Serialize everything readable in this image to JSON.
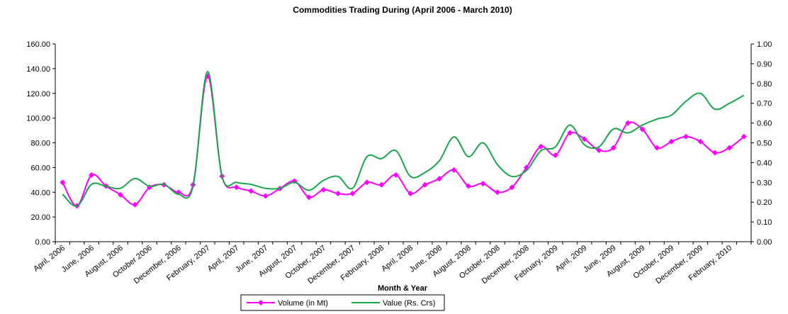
{
  "chart_data": {
    "type": "line",
    "title": "Commodities Trading During (April 2006 - March 2010)",
    "x_label": "Month & Year",
    "categories": [
      "April, 2006",
      null,
      "June, 2006",
      null,
      "August, 2006",
      null,
      "October 2006",
      null,
      "December, 2006",
      null,
      "February, 2007",
      null,
      "April, 2007",
      null,
      "June, 2007",
      null,
      "August, 2007",
      null,
      "October, 2007",
      null,
      "December, 2007",
      null,
      "February, 2008",
      null,
      "April, 2008",
      null,
      "June, 2008",
      null,
      "August, 2008",
      null,
      "October, 2008",
      null,
      "December, 2008",
      null,
      "February, 2009",
      null,
      "April, 2009",
      null,
      "June, 2009",
      null,
      "August, 2009",
      null,
      "October, 2009",
      null,
      "December, 2009",
      null,
      "February, 2010",
      null
    ],
    "series": [
      {
        "name": "Volume (in Mt)",
        "color": "#ff00ff",
        "marker": "diamond",
        "values": [
          48,
          29,
          54,
          45,
          38,
          30,
          44,
          46,
          40,
          46,
          134,
          53,
          44,
          41,
          37,
          43,
          49,
          36,
          42,
          39,
          39,
          48,
          46,
          54,
          39,
          46,
          51,
          58,
          45,
          47,
          40,
          44,
          60,
          77,
          70,
          88,
          83,
          74,
          76,
          96,
          91,
          76,
          81,
          85,
          81,
          72,
          76,
          85
        ]
      },
      {
        "name": "Value (Rs. Crs)",
        "color": "#1aa64a",
        "axis": "y2",
        "values": [
          0.24,
          0.18,
          0.29,
          0.28,
          0.27,
          0.32,
          0.28,
          0.29,
          0.24,
          0.28,
          0.86,
          0.33,
          0.3,
          0.29,
          0.27,
          0.27,
          0.3,
          0.26,
          0.31,
          0.33,
          0.27,
          0.43,
          0.42,
          0.46,
          0.33,
          0.35,
          0.41,
          0.53,
          0.43,
          0.5,
          0.39,
          0.33,
          0.36,
          0.46,
          0.48,
          0.59,
          0.49,
          0.48,
          0.57,
          0.55,
          0.59,
          0.62,
          0.64,
          0.71,
          0.75,
          0.67,
          0.7,
          0.74
        ]
      }
    ],
    "ylim": [
      0,
      160
    ],
    "yticks": [
      {
        "value": 0,
        "label": "0.00"
      },
      {
        "value": 20,
        "label": "20.00"
      },
      {
        "value": 40,
        "label": "40.00"
      },
      {
        "value": 60,
        "label": "60.00"
      },
      {
        "value": 80,
        "label": "80.00"
      },
      {
        "value": 100,
        "label": "100.00"
      },
      {
        "value": 120,
        "label": "120.00"
      },
      {
        "value": 140,
        "label": "140.00"
      },
      {
        "value": 160,
        "label": "160.00"
      }
    ],
    "y2lim": [
      0,
      1
    ],
    "y2ticks": [
      {
        "value": 0,
        "label": "0.00"
      },
      {
        "value": 0.1,
        "label": "0.10"
      },
      {
        "value": 0.2,
        "label": "0.20"
      },
      {
        "value": 0.3,
        "label": "0.30"
      },
      {
        "value": 0.4,
        "label": "0.40"
      },
      {
        "value": 0.5,
        "label": "0.50"
      },
      {
        "value": 0.6,
        "label": "0.60"
      },
      {
        "value": 0.7,
        "label": "0.70"
      },
      {
        "value": 0.8,
        "label": "0.80"
      },
      {
        "value": 0.9,
        "label": "0.90"
      },
      {
        "value": 1,
        "label": "1.00"
      }
    ],
    "legend": "bottom"
  }
}
